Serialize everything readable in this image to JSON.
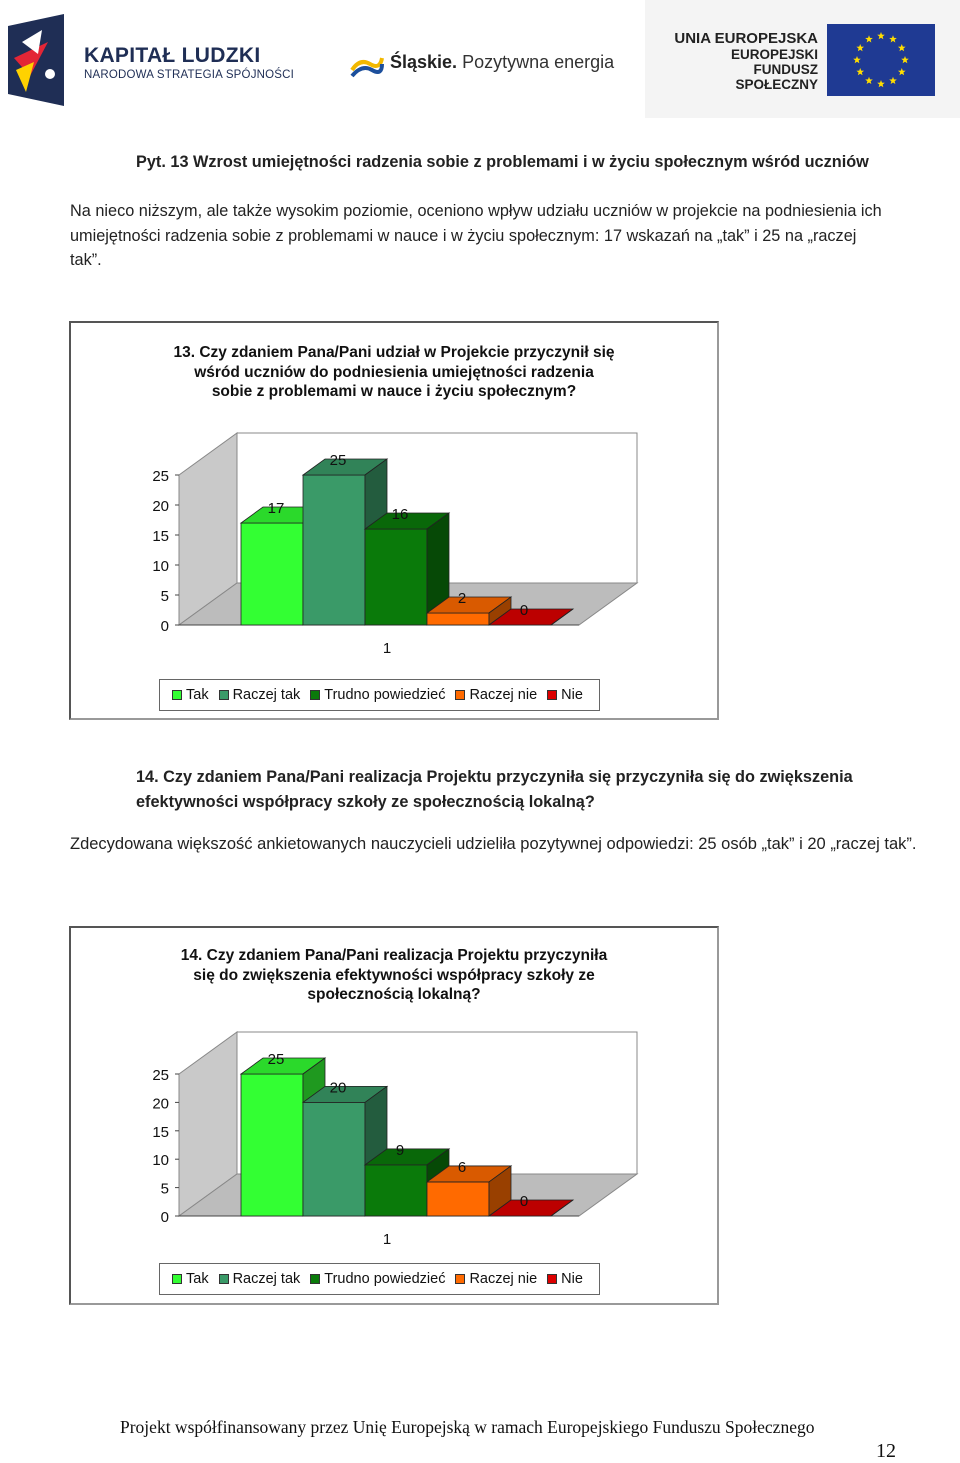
{
  "header": {
    "kapital_title": "KAPITAŁ LUDZKI",
    "kapital_subtitle": "NARODOWA STRATEGIA SPÓJNOŚCI",
    "slaskie_bold": "Śląskie.",
    "slaskie_rest": " Pozytywna energia",
    "ue_line1": "UNIA EUROPEJSKA",
    "ue_line2": "EUROPEJSKI",
    "ue_line3": "FUNDUSZ SPOŁECZNY",
    "colors": {
      "kl_navy": "#1f2e55",
      "eu_blue": "#1f3a93",
      "eu_star": "#ffdd00"
    }
  },
  "section13": {
    "heading": "Pyt. 13 Wzrost umiejętności radzenia sobie z problemami i w życiu społecznym wśród uczniów",
    "paragraph": "Na nieco niższym, ale także wysokim poziomie, oceniono wpływ udziału uczniów w projekcie na podniesienia ich umiejętności radzenia sobie z problemami w nauce i w życiu społecznym: 17 wskazań na „tak” i 25 na „raczej tak”."
  },
  "section14": {
    "heading": "14. Czy zdaniem Pana/Pani realizacja Projektu przyczyniła się przyczyniła się do zwiększenia efektywności współpracy szkoły ze społecznością lokalną?",
    "paragraph": "Zdecydowana większość ankietowanych nauczycieli udzieliła pozytywnej odpowiedzi: 25 osób „tak” i 20 „raczej tak”."
  },
  "chart_data": [
    {
      "type": "bar",
      "style": "3d-clustered-column",
      "title": "13. Czy zdaniem Pana/Pani udział w Projekcie przyczynił się wśród uczniów do podniesienia umiejętności radzenia sobie z problemami w nauce i życiu społecznym?",
      "categories": [
        "1"
      ],
      "series": [
        {
          "name": "Tak",
          "values": [
            17
          ],
          "color": "#33ff33"
        },
        {
          "name": "Raczej tak",
          "values": [
            25
          ],
          "color": "#3a9a68"
        },
        {
          "name": "Trudno powiedzieć",
          "values": [
            16
          ],
          "color": "#0a7a0a"
        },
        {
          "name": "Raczej nie",
          "values": [
            2
          ],
          "color": "#ff6a00"
        },
        {
          "name": "Nie",
          "values": [
            0
          ],
          "color": "#dd0000"
        }
      ],
      "ylim": [
        0,
        25
      ],
      "yticks": [
        0,
        5,
        10,
        15,
        20,
        25
      ],
      "xlabel": "",
      "ylabel": "",
      "data_labels": true,
      "legend": "bottom"
    },
    {
      "type": "bar",
      "style": "3d-clustered-column",
      "title": "14. Czy zdaniem Pana/Pani realizacja Projektu przyczyniła się do zwiększenia efektywności współpracy szkoły ze społecznością lokalną?",
      "categories": [
        "1"
      ],
      "series": [
        {
          "name": "Tak",
          "values": [
            25
          ],
          "color": "#33ff33"
        },
        {
          "name": "Raczej tak",
          "values": [
            20
          ],
          "color": "#3a9a68"
        },
        {
          "name": "Trudno powiedzieć",
          "values": [
            9
          ],
          "color": "#0a7a0a"
        },
        {
          "name": "Raczej nie",
          "values": [
            6
          ],
          "color": "#ff6a00"
        },
        {
          "name": "Nie",
          "values": [
            0
          ],
          "color": "#dd0000"
        }
      ],
      "ylim": [
        0,
        25
      ],
      "yticks": [
        0,
        5,
        10,
        15,
        20,
        25
      ],
      "xlabel": "",
      "ylabel": "",
      "data_labels": true,
      "legend": "bottom"
    }
  ],
  "chart_titles": [
    [
      "13. Czy zdaniem Pana/Pani udział w Projekcie przyczynił się",
      "wśród uczniów do podniesienia umiejętności radzenia",
      "sobie z problemami w nauce i życiu społecznym?"
    ],
    [
      "14. Czy zdaniem Pana/Pani realizacja Projektu przyczyniła",
      "się do zwiększenia efektywności współpracy szkoły ze",
      "społecznością lokalną?"
    ]
  ],
  "footer": {
    "text": "Projekt współfinansowany przez Unię Europejską w ramach Europejskiego Funduszu Społecznego",
    "page_number": "12"
  }
}
